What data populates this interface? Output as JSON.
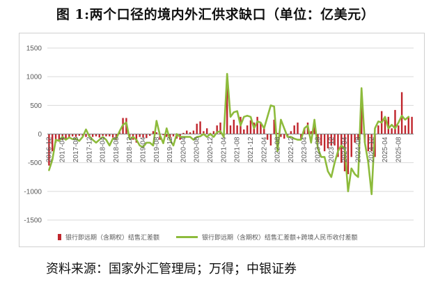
{
  "title": "图 1:两个口径的境内外汇供求缺口（单位：亿美元）",
  "source": "资料来源：国家外汇管理局；万得；中银证券",
  "colors": {
    "bar": "#C0262D",
    "line": "#8DBB3C",
    "grid": "#D9D9D9",
    "axis": "#7F7F7F"
  },
  "chart_data": {
    "type": "bar",
    "ylim": [
      -1500,
      1500
    ],
    "yticks": [
      1500,
      1000,
      500,
      0,
      -500,
      -1000,
      -1500
    ],
    "xtick_labels": [
      "2016-12",
      "2017-04",
      "2017-08",
      "2017-12",
      "2018-04",
      "2018-08",
      "2018-12",
      "2019-04",
      "2019-08",
      "2019-12",
      "2020-04",
      "2020-08",
      "2020-12",
      "2021-04",
      "2021-08",
      "2021-12",
      "2022-04",
      "2022-08",
      "2022-12",
      "2023-04",
      "2023-08",
      "2023-12",
      "2024-04",
      "2024-08",
      "2024-12",
      "2025-04",
      "2025-08"
    ],
    "series": [
      {
        "name": "银行即远期（含期权）结售汇差额",
        "type": "bar",
        "values": [
          -550,
          -300,
          -150,
          -120,
          -100,
          -80,
          -60,
          -40,
          -50,
          -30,
          -30,
          -50,
          -50,
          -50,
          -40,
          -60,
          -30,
          -40,
          -40,
          -60,
          -100,
          50,
          280,
          280,
          -50,
          -100,
          -150,
          -50,
          -60,
          -70,
          -30,
          50,
          30,
          -100,
          -20,
          -50,
          -80,
          -40,
          -80,
          -100,
          20,
          60,
          30,
          60,
          180,
          220,
          50,
          100,
          20,
          50,
          150,
          200,
          -60,
          850,
          150,
          250,
          150,
          300,
          80,
          150,
          240,
          200,
          300,
          200,
          100,
          -100,
          -200,
          250,
          20,
          -50,
          -80,
          -30,
          50,
          150,
          200,
          -100,
          100,
          200,
          50,
          150,
          -150,
          -200,
          -300,
          -250,
          -200,
          -200,
          -400,
          -500,
          -650,
          -700,
          -400,
          -150,
          -100,
          500,
          -150,
          -300,
          -300,
          -400,
          150,
          400,
          250,
          300,
          100,
          420,
          150,
          730,
          150,
          300,
          300
        ]
      },
      {
        "name": "银行即远期（含期权）结售汇差额+跨境人民币收付差额",
        "type": "line",
        "values": [
          -630,
          -450,
          -100,
          -120,
          -50,
          -100,
          -60,
          -90,
          -80,
          -120,
          -50,
          80,
          -40,
          -100,
          -150,
          -100,
          -50,
          -100,
          -200,
          -80,
          -80,
          50,
          160,
          200,
          -90,
          -50,
          -100,
          -200,
          -230,
          -150,
          -150,
          -200,
          230,
          -20,
          -160,
          100,
          -100,
          -200,
          0,
          -50,
          -50,
          -50,
          -50,
          -100,
          -50,
          -40,
          0,
          -50,
          0,
          -50,
          30,
          50,
          -50,
          1050,
          300,
          380,
          400,
          150,
          300,
          320,
          300,
          100,
          220,
          200,
          100,
          300,
          500,
          480,
          -300,
          250,
          100,
          -50,
          -50,
          -80,
          -100,
          -100,
          100,
          150,
          -150,
          250,
          -250,
          -400,
          -400,
          -650,
          -750,
          -500,
          -300,
          -200,
          -250,
          -1000,
          -600,
          -700,
          -750,
          800,
          -150,
          -500,
          -1050,
          100,
          220,
          200,
          300,
          100,
          160,
          100,
          200,
          320,
          250,
          300
        ]
      }
    ],
    "legend_position": "bottom"
  }
}
